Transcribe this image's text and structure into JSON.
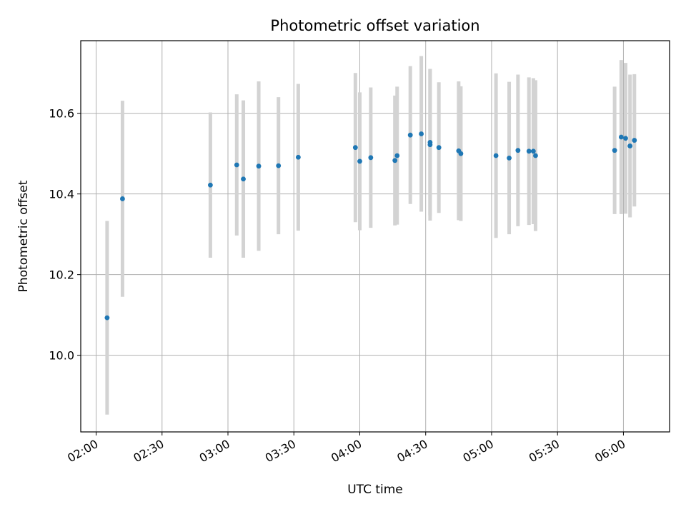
{
  "chart_data": {
    "type": "scatter",
    "title": "Photometric offset variation",
    "xlabel": "UTC time",
    "ylabel": "Photometric offset",
    "xlim": [
      "01:53",
      "06:21"
    ],
    "ylim": [
      9.81,
      10.78
    ],
    "grid": true,
    "x_ticks": [
      "02:00",
      "02:30",
      "03:00",
      "03:30",
      "04:00",
      "04:30",
      "05:00",
      "05:30",
      "06:00"
    ],
    "y_ticks": [
      10.0,
      10.2,
      10.4,
      10.6
    ],
    "y_tick_labels": [
      "10.0",
      "10.2",
      "10.4",
      "10.6"
    ],
    "colors": {
      "point": "#1f77b4",
      "errorbar": "#d3d3d3",
      "grid": "#b0b0b0"
    },
    "series": [
      {
        "x": [
          "02:05",
          "02:12",
          "02:52",
          "03:04",
          "03:07",
          "03:14",
          "03:23",
          "03:32",
          "03:58",
          "04:00",
          "04:05",
          "04:16",
          "04:17",
          "04:23",
          "04:28",
          "04:32",
          "04:32",
          "04:36",
          "04:45",
          "04:46",
          "05:02",
          "05:08",
          "05:12",
          "05:17",
          "05:19",
          "05:20",
          "05:56",
          "05:59",
          "06:01",
          "06:03",
          "06:05"
        ],
        "y": [
          10.093,
          10.388,
          10.422,
          10.472,
          10.437,
          10.469,
          10.47,
          10.491,
          10.515,
          10.481,
          10.49,
          10.483,
          10.495,
          10.546,
          10.549,
          10.522,
          10.528,
          10.515,
          10.507,
          10.5,
          10.495,
          10.489,
          10.508,
          10.506,
          10.506,
          10.495,
          10.508,
          10.541,
          10.538,
          10.519,
          10.533
        ],
        "err": [
          0.24,
          0.243,
          0.18,
          0.175,
          0.195,
          0.21,
          0.17,
          0.182,
          0.185,
          0.171,
          0.174,
          0.161,
          0.171,
          0.171,
          0.193,
          0.188,
          0.181,
          0.162,
          0.172,
          0.167,
          0.204,
          0.189,
          0.188,
          0.183,
          0.181,
          0.187,
          0.158,
          0.191,
          0.187,
          0.177,
          0.164
        ]
      }
    ]
  }
}
